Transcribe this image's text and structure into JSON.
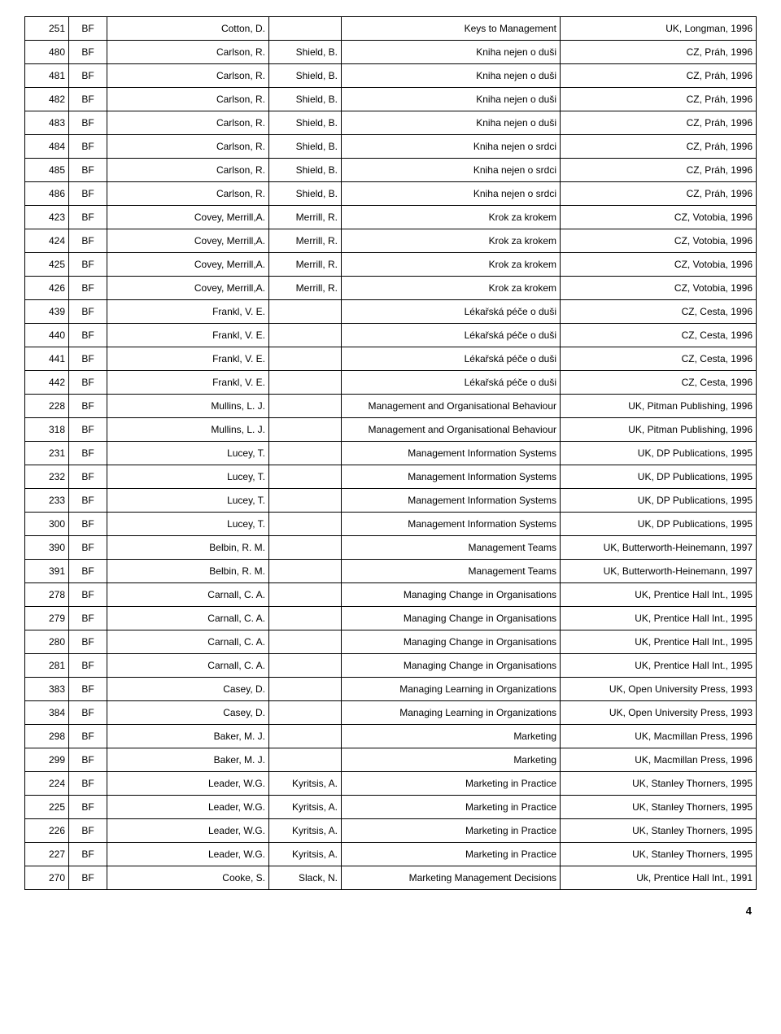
{
  "page_number": "4",
  "columns": [
    "id",
    "cat",
    "author",
    "author2",
    "title",
    "imprint"
  ],
  "rows": [
    [
      "251",
      "BF",
      "Cotton, D.",
      "",
      "Keys to Management",
      "UK, Longman, 1996"
    ],
    [
      "480",
      "BF",
      "Carlson, R.",
      "Shield, B.",
      "Kniha nejen o duši",
      "CZ, Práh, 1996"
    ],
    [
      "481",
      "BF",
      "Carlson, R.",
      "Shield, B.",
      "Kniha nejen o duši",
      "CZ, Práh, 1996"
    ],
    [
      "482",
      "BF",
      "Carlson, R.",
      "Shield, B.",
      "Kniha nejen o duši",
      "CZ, Práh, 1996"
    ],
    [
      "483",
      "BF",
      "Carlson, R.",
      "Shield, B.",
      "Kniha nejen o duši",
      "CZ, Práh, 1996"
    ],
    [
      "484",
      "BF",
      "Carlson, R.",
      "Shield, B.",
      "Kniha nejen o srdci",
      "CZ, Práh, 1996"
    ],
    [
      "485",
      "BF",
      "Carlson, R.",
      "Shield, B.",
      "Kniha nejen o srdci",
      "CZ, Práh, 1996"
    ],
    [
      "486",
      "BF",
      "Carlson, R.",
      "Shield, B.",
      "Kniha nejen o srdci",
      "CZ, Práh, 1996"
    ],
    [
      "423",
      "BF",
      "Covey, Merrill,A.",
      "Merrill, R.",
      "Krok za krokem",
      "CZ, Votobia, 1996"
    ],
    [
      "424",
      "BF",
      "Covey, Merrill,A.",
      "Merrill, R.",
      "Krok za krokem",
      "CZ, Votobia, 1996"
    ],
    [
      "425",
      "BF",
      "Covey, Merrill,A.",
      "Merrill, R.",
      "Krok za krokem",
      "CZ, Votobia, 1996"
    ],
    [
      "426",
      "BF",
      "Covey, Merrill,A.",
      "Merrill, R.",
      "Krok za krokem",
      "CZ, Votobia, 1996"
    ],
    [
      "439",
      "BF",
      "Frankl, V. E.",
      "",
      "Lékařská péče o duši",
      "CZ, Cesta, 1996"
    ],
    [
      "440",
      "BF",
      "Frankl, V. E.",
      "",
      "Lékařská péče o duši",
      "CZ, Cesta, 1996"
    ],
    [
      "441",
      "BF",
      "Frankl, V. E.",
      "",
      "Lékařská péče o duši",
      "CZ, Cesta, 1996"
    ],
    [
      "442",
      "BF",
      "Frankl, V. E.",
      "",
      "Lékařská péče o duši",
      "CZ, Cesta, 1996"
    ],
    [
      "228",
      "BF",
      "Mullins, L. J.",
      "",
      "Management and Organisational Behaviour",
      "UK, Pitman Publishing, 1996"
    ],
    [
      "318",
      "BF",
      "Mullins, L. J.",
      "",
      "Management and Organisational Behaviour",
      "UK, Pitman Publishing, 1996"
    ],
    [
      "231",
      "BF",
      "Lucey, T.",
      "",
      "Management Information Systems",
      "UK, DP Publications, 1995"
    ],
    [
      "232",
      "BF",
      "Lucey, T.",
      "",
      "Management Information Systems",
      "UK, DP Publications, 1995"
    ],
    [
      "233",
      "BF",
      "Lucey, T.",
      "",
      "Management Information Systems",
      "UK, DP Publications, 1995"
    ],
    [
      "300",
      "BF",
      "Lucey, T.",
      "",
      "Management Information Systems",
      "UK, DP Publications, 1995"
    ],
    [
      "390",
      "BF",
      "Belbin, R. M.",
      "",
      "Management Teams",
      "UK, Butterworth-Heinemann, 1997"
    ],
    [
      "391",
      "BF",
      "Belbin, R. M.",
      "",
      "Management Teams",
      "UK, Butterworth-Heinemann, 1997"
    ],
    [
      "278",
      "BF",
      "Carnall, C. A.",
      "",
      "Managing Change in Organisations",
      "UK, Prentice Hall Int., 1995"
    ],
    [
      "279",
      "BF",
      "Carnall, C. A.",
      "",
      "Managing Change in Organisations",
      "UK, Prentice Hall Int., 1995"
    ],
    [
      "280",
      "BF",
      "Carnall, C. A.",
      "",
      "Managing Change in Organisations",
      "UK, Prentice Hall Int., 1995"
    ],
    [
      "281",
      "BF",
      "Carnall, C. A.",
      "",
      "Managing Change in Organisations",
      "UK, Prentice Hall Int., 1995"
    ],
    [
      "383",
      "BF",
      "Casey, D.",
      "",
      "Managing Learning in Organizations",
      "UK, Open University Press, 1993"
    ],
    [
      "384",
      "BF",
      "Casey, D.",
      "",
      "Managing Learning in Organizations",
      "UK, Open University Press, 1993"
    ],
    [
      "298",
      "BF",
      "Baker, M. J.",
      "",
      "Marketing",
      "UK, Macmillan Press, 1996"
    ],
    [
      "299",
      "BF",
      "Baker, M. J.",
      "",
      "Marketing",
      "UK, Macmillan Press, 1996"
    ],
    [
      "224",
      "BF",
      "Leader, W.G.",
      "Kyritsis, A.",
      "Marketing in Practice",
      "UK, Stanley Thorners, 1995"
    ],
    [
      "225",
      "BF",
      "Leader, W.G.",
      "Kyritsis, A.",
      "Marketing in Practice",
      "UK, Stanley Thorners, 1995"
    ],
    [
      "226",
      "BF",
      "Leader, W.G.",
      "Kyritsis, A.",
      "Marketing in Practice",
      "UK, Stanley Thorners, 1995"
    ],
    [
      "227",
      "BF",
      "Leader, W.G.",
      "Kyritsis, A.",
      "Marketing in Practice",
      "UK, Stanley Thorners, 1995"
    ],
    [
      "270",
      "BF",
      "Cooke, S.",
      "Slack, N.",
      "Marketing Management Decisions",
      "Uk, Prentice Hall Int., 1991"
    ]
  ]
}
